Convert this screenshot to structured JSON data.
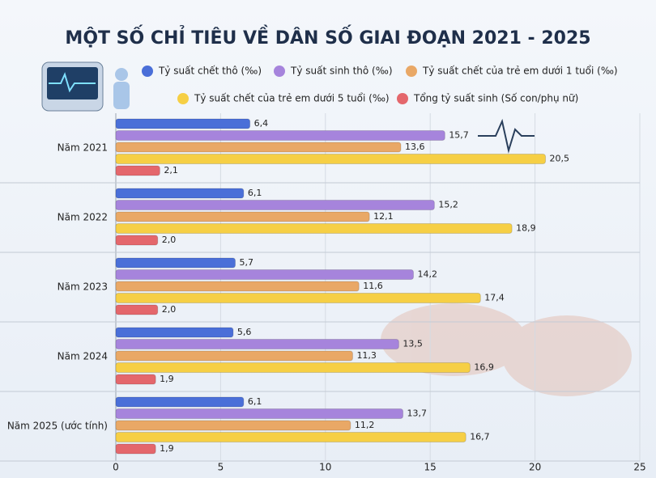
{
  "chart_data": {
    "type": "bar",
    "orientation": "horizontal",
    "title": "MỘT SỐ CHỈ TIÊU VỀ DÂN SỐ GIAI ĐOẠN 2021 - 2025",
    "categories": [
      "Năm 2021",
      "Năm 2022",
      "Năm 2023",
      "Năm 2024",
      "Năm 2025 (ước tính)"
    ],
    "series": [
      {
        "name": "Tỷ suất chết thô (‰)",
        "color": "#4a6fd8",
        "values": [
          6.4,
          6.1,
          5.7,
          5.6,
          6.1
        ],
        "value_labels": [
          "6,4",
          "6,1",
          "5,7",
          "5,6",
          "6,1"
        ]
      },
      {
        "name": "Tỷ suất sinh thô (‰)",
        "color": "#a684dc",
        "values": [
          15.7,
          15.2,
          14.2,
          13.5,
          13.7
        ],
        "value_labels": [
          "15,7",
          "15,2",
          "14,2",
          "13,5",
          "13,7"
        ]
      },
      {
        "name": "Tỷ suất chết của trẻ em dưới 1 tuổi (‰)",
        "color": "#e9a866",
        "values": [
          13.6,
          12.1,
          11.6,
          11.3,
          11.2
        ],
        "value_labels": [
          "13,6",
          "12,1",
          "11,6",
          "11,3",
          "11,2"
        ]
      },
      {
        "name": "Tỷ suất chết của trẻ em dưới 5 tuổi (‰)",
        "color": "#f6cf45",
        "values": [
          20.5,
          18.9,
          17.4,
          16.9,
          16.7
        ],
        "value_labels": [
          "20,5",
          "18,9",
          "17,4",
          "16,9",
          "16,7"
        ]
      },
      {
        "name": "Tổng tỷ suất sinh (Số con/phụ nữ)",
        "color": "#e4676c",
        "values": [
          2.1,
          2,
          2,
          1.9,
          1.9
        ],
        "value_labels": [
          "2,1",
          "2,0",
          "2,0",
          "1,9",
          "1,9"
        ]
      }
    ],
    "xlim": [
      0,
      25
    ],
    "xticks": [
      0,
      5,
      10,
      15,
      20,
      25
    ],
    "grid": true
  }
}
